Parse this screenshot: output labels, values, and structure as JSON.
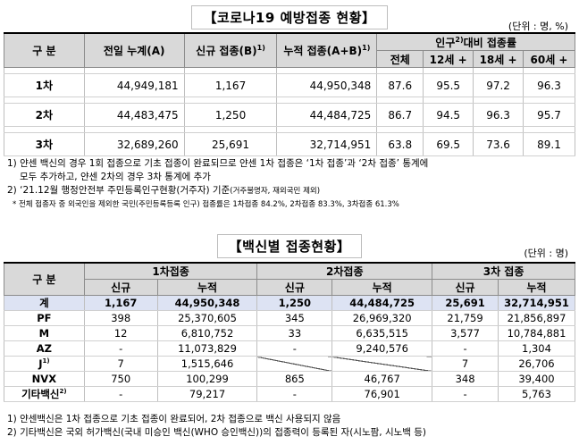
{
  "table1": {
    "title": "【코로나19 예방접종 현황】",
    "unit": "(단위 : 명, %)",
    "headers": {
      "category": "구 분",
      "prev_cumulative": "전일 누계(A)",
      "new": "신규 접종(B)",
      "new_sup": "1)",
      "cumulative": "누적 접종(A+B)",
      "cumulative_sup": "1)",
      "pop_ratio_pre": "인구",
      "pop_ratio_sup": "2)",
      "pop_ratio_post": "대비 접종률",
      "total": "전체",
      "age12": "12세 +",
      "age18": "18세 +",
      "age60": "60세 +"
    },
    "rows": [
      {
        "label": "1차",
        "prev": "44,949,181",
        "new": "1,167",
        "cum": "44,950,348",
        "total": "87.6",
        "age12": "95.5",
        "age18": "97.2",
        "age60": "96.3"
      },
      {
        "label": "2차",
        "prev": "44,483,475",
        "new": "1,250",
        "cum": "44,484,725",
        "total": "86.7",
        "age12": "94.5",
        "age18": "96.3",
        "age60": "95.7"
      },
      {
        "label": "3차",
        "prev": "32,689,260",
        "new": "25,691",
        "cum": "32,714,951",
        "total": "63.8",
        "age12": "69.5",
        "age18": "73.6",
        "age60": "89.1"
      }
    ],
    "notes": {
      "n1_line1": "1) 얀센 백신의 경우 1회 접종으로 기초 접종이 완료되므로 얀센 1차 접종은 ‘1차 접종’과 ‘2차 접종’ 통계에",
      "n1_line2": "모두 추가하고, 얀센 2차의 경우 3차 통계에 추가",
      "n2_main": "2) ‘21.12월 행정안전부 주민등록인구현황(거주자) 기준",
      "n2_small": "(거주불명자, 재외국민 제외)",
      "n3": "* 전체 접종자 중 외국인을 제외한 국민(주민등록등록 인구) 접종률은 1차접종 84.2%, 2차접종 83.3%, 3차접종 61.3%"
    }
  },
  "table2": {
    "title": "【백신별 접종현황】",
    "unit": "(단위 : 명)",
    "headers": {
      "category": "구 분",
      "dose1": "1차접종",
      "dose2": "2차접종",
      "dose3": "3차 접종",
      "new": "신규",
      "cum": "누적"
    },
    "rows": [
      {
        "label": "계",
        "label_sup": "",
        "d1_new": "1,167",
        "d1_cum": "44,950,348",
        "d2_new": "1,250",
        "d2_cum": "44,484,725",
        "d3_new": "25,691",
        "d3_cum": "32,714,951"
      },
      {
        "label": "PF",
        "label_sup": "",
        "d1_new": "398",
        "d1_cum": "25,370,605",
        "d2_new": "345",
        "d2_cum": "26,969,320",
        "d3_new": "21,759",
        "d3_cum": "21,856,897"
      },
      {
        "label": "M",
        "label_sup": "",
        "d1_new": "12",
        "d1_cum": "6,810,752",
        "d2_new": "33",
        "d2_cum": "6,635,515",
        "d3_new": "3,577",
        "d3_cum": "10,784,881"
      },
      {
        "label": "AZ",
        "label_sup": "",
        "d1_new": "-",
        "d1_cum": "11,073,829",
        "d2_new": "-",
        "d2_cum": "9,240,576",
        "d3_new": "-",
        "d3_cum": "1,304"
      },
      {
        "label": "J",
        "label_sup": "1)",
        "d1_new": "7",
        "d1_cum": "1,515,646",
        "d2_new": "",
        "d2_cum": "",
        "d3_new": "7",
        "d3_cum": "26,706"
      },
      {
        "label": "NVX",
        "label_sup": "",
        "d1_new": "750",
        "d1_cum": "100,299",
        "d2_new": "865",
        "d2_cum": "46,767",
        "d3_new": "348",
        "d3_cum": "39,400"
      },
      {
        "label": "기타백신",
        "label_sup": "2)",
        "d1_new": "-",
        "d1_cum": "79,217",
        "d2_new": "-",
        "d2_cum": "76,901",
        "d3_new": "-",
        "d3_cum": "5,763"
      }
    ],
    "notes": {
      "n1": "1) 얀센백신은 1차 접종으로 기초 접종이 완료되어, 2차 접종으로 백신 사용되지 않음",
      "n2": "2) 기타백신은 국외 허가백신(국내 미승인 백신(WHO 승인백신))의 접종력이 등록된 자(시노팜, 시노백 등)"
    }
  }
}
